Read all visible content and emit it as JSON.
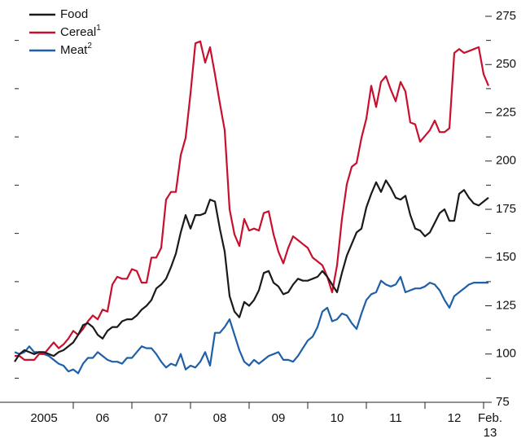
{
  "chart_data": {
    "type": "line",
    "xlim": [
      0,
      97
    ],
    "xticks": [
      {
        "value": 6,
        "label": "2005"
      },
      {
        "value": 18,
        "label": "06"
      },
      {
        "value": 30,
        "label": "07"
      },
      {
        "value": 42,
        "label": "08"
      },
      {
        "value": 54,
        "label": "09"
      },
      {
        "value": 66,
        "label": "10"
      },
      {
        "value": 78,
        "label": "11"
      },
      {
        "value": 90,
        "label": "12"
      },
      {
        "value": 97,
        "label": "Feb.\n13"
      }
    ],
    "ylim": [
      75,
      275
    ],
    "yticks": [
      75,
      100,
      125,
      150,
      175,
      200,
      225,
      250,
      275
    ],
    "legend": "upper-left",
    "series": [
      {
        "name": "Food",
        "color": "#1a1a1a",
        "values": [
          96,
          100,
          102,
          101,
          100,
          101,
          101,
          100,
          99,
          101,
          102,
          104,
          106,
          110,
          115,
          116,
          114,
          110,
          108,
          112,
          114,
          114,
          117,
          118,
          118,
          120,
          123,
          125,
          128,
          134,
          136,
          139,
          145,
          152,
          163,
          172,
          165,
          172,
          172,
          173,
          180,
          179,
          165,
          153,
          130,
          122,
          119,
          127,
          125,
          128,
          133,
          142,
          143,
          137,
          135,
          131,
          132,
          136,
          139,
          138,
          138,
          139,
          140,
          143,
          140,
          136,
          132,
          142,
          151,
          157,
          163,
          165,
          176,
          183,
          189,
          184,
          190,
          186,
          181,
          180,
          182,
          172,
          165,
          164,
          161,
          163,
          168,
          173,
          175,
          169,
          169,
          183,
          185,
          181,
          178,
          177,
          179,
          181
        ]
      },
      {
        "name": "Cereal",
        "footnote": "1",
        "color": "#c8102e",
        "values": [
          99,
          99,
          97,
          97,
          97,
          100,
          100,
          103,
          106,
          103,
          105,
          108,
          112,
          110,
          113,
          117,
          120,
          118,
          123,
          122,
          136,
          140,
          139,
          139,
          144,
          143,
          137,
          137,
          150,
          150,
          155,
          180,
          184,
          184,
          203,
          212,
          235,
          261,
          262,
          251,
          259,
          245,
          230,
          216,
          175,
          162,
          156,
          170,
          164,
          165,
          164,
          173,
          174,
          162,
          153,
          147,
          155,
          161,
          159,
          157,
          155,
          150,
          148,
          146,
          140,
          132,
          146,
          170,
          188,
          197,
          199,
          212,
          222,
          239,
          228,
          241,
          244,
          237,
          231,
          241,
          236,
          220,
          219,
          210,
          213,
          216,
          221,
          215,
          215,
          217,
          256,
          258,
          256,
          257,
          258,
          259,
          245,
          239
        ]
      },
      {
        "name": "Meat",
        "footnote": "2",
        "color": "#1f5fa8",
        "values": [
          101,
          100,
          101,
          104,
          101,
          101,
          100,
          99,
          97,
          95,
          94,
          91,
          92,
          90,
          95,
          98,
          98,
          101,
          99,
          97,
          96,
          96,
          95,
          98,
          98,
          101,
          104,
          103,
          103,
          100,
          96,
          93,
          95,
          94,
          100,
          92,
          94,
          93,
          96,
          101,
          94,
          111,
          111,
          114,
          118,
          110,
          102,
          96,
          94,
          97,
          95,
          97,
          99,
          100,
          101,
          97,
          97,
          96,
          99,
          103,
          107,
          109,
          114,
          122,
          124,
          117,
          118,
          121,
          120,
          116,
          113,
          121,
          128,
          131,
          132,
          138,
          136,
          135,
          136,
          140,
          132,
          133,
          134,
          134,
          135,
          137,
          136,
          133,
          128,
          124,
          130,
          132,
          134,
          136,
          137,
          137,
          137,
          137
        ]
      }
    ]
  }
}
